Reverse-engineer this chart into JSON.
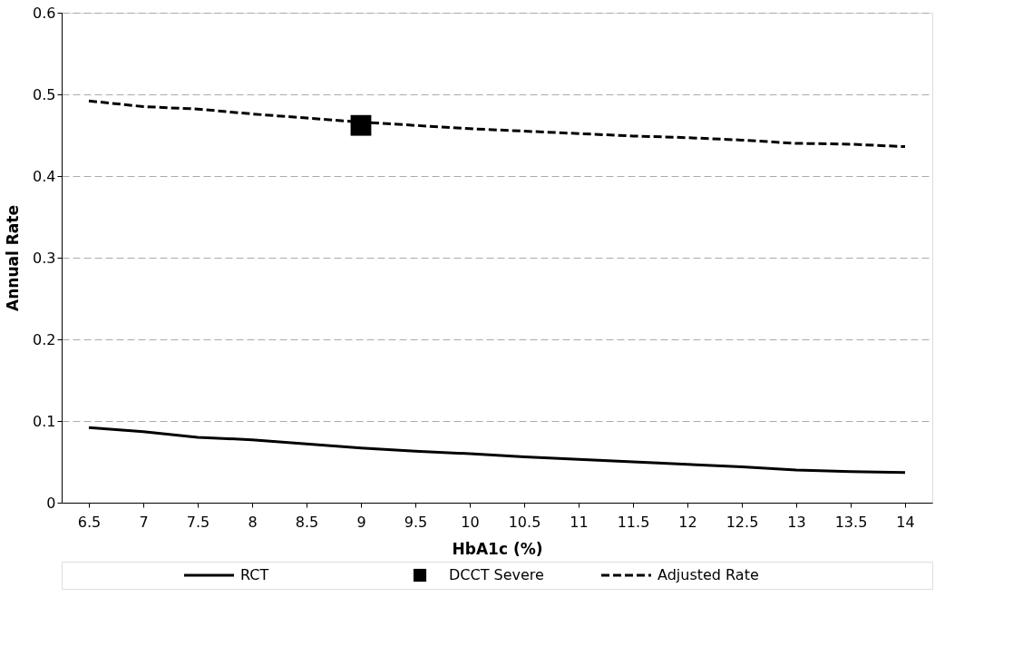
{
  "chart_data": {
    "type": "line",
    "xlabel": "HbA1c (%)",
    "ylabel": "Annual Rate",
    "categories": [
      "6.5",
      "7",
      "7.5",
      "8",
      "8.5",
      "9",
      "9.5",
      "10",
      "10.5",
      "11",
      "11.5",
      "12",
      "12.5",
      "13",
      "13.5",
      "14"
    ],
    "series": [
      {
        "name": "RCT",
        "line_style": "solid",
        "marker": "none",
        "color": "#000000",
        "values": [
          0.092,
          0.087,
          0.08,
          0.077,
          0.072,
          0.067,
          0.063,
          0.06,
          0.056,
          0.053,
          0.05,
          0.047,
          0.044,
          0.04,
          0.038,
          0.037
        ]
      },
      {
        "name": "DCCT Severe",
        "type": "scatter",
        "marker": "square",
        "color": "#000000",
        "x": [
          "9"
        ],
        "values": [
          0.462
        ]
      },
      {
        "name": "Adjusted Rate",
        "line_style": "dashed",
        "marker": "none",
        "color": "#000000",
        "values": [
          0.492,
          0.485,
          0.482,
          0.476,
          0.471,
          0.466,
          0.462,
          0.458,
          0.455,
          0.452,
          0.449,
          0.447,
          0.444,
          0.44,
          0.439,
          0.436
        ]
      }
    ],
    "ylim": [
      0,
      0.6
    ],
    "yticks": [
      0,
      0.1,
      0.2,
      0.3,
      0.4,
      0.5,
      0.6
    ],
    "grid": "y",
    "legend": "bottom"
  }
}
